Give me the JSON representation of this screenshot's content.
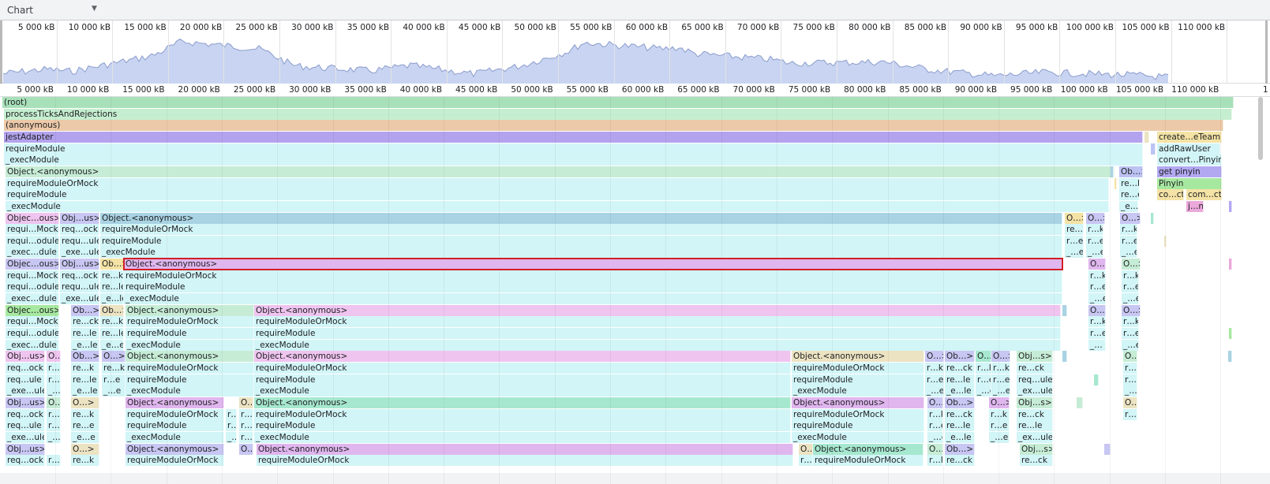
{
  "toolbar": {
    "view_select": {
      "value": "Chart",
      "arrow": "▼"
    }
  },
  "overview": {
    "ticks": [
      "5 000 kB",
      "10 000 kB",
      "15 000 kB",
      "20 000 kB",
      "25 000 kB",
      "30 000 kB",
      "35 000 kB",
      "40 000 kB",
      "45 000 kB",
      "50 000 kB",
      "55 000 kB",
      "60 000 kB",
      "65 000 kB",
      "70 000 kB",
      "75 000 kB",
      "80 000 kB",
      "85 000 kB",
      "90 000 kB",
      "95 000 kB",
      "100 000 kB",
      "105 000 kB",
      "110 000 kB"
    ],
    "fill_color": "#c8d4f1",
    "stroke_color": "#8b9ccd"
  },
  "ruler": {
    "ticks": [
      "5 000 kB",
      "10 000 kB",
      "15 000 kB",
      "20 000 kB",
      "25 000 kB",
      "30 000 kB",
      "35 000 kB",
      "40 000 kB",
      "45 000 kB",
      "50 000 kB",
      "55 000 kB",
      "60 000 kB",
      "65 000 kB",
      "70 000 kB",
      "75 000 kB",
      "80 000 kB",
      "85 000 kB",
      "90 000 kB",
      "95 000 kB",
      "100 000 kB",
      "105 000 kB",
      "110 000 kB",
      "1"
    ]
  },
  "colors": {
    "root": "#a8e0b9",
    "process": "#c5eed0",
    "anon": "#ecc9a8",
    "jest": "#b3a3ee",
    "cyan": "#d2f5f7",
    "obj_green": "#c6ecd5",
    "obj_blue": "#a9d3e3",
    "obj_pink": "#efc4ef",
    "obj_violet": "#c8c6f2",
    "obj_lilac": "#e0b6ee",
    "obj_teal": "#a6e8cf",
    "obj_sand": "#ece3c2",
    "selected_outline": "#d21f26",
    "yellow": "#f4e3a5",
    "purple": "#b2a8f2",
    "green2": "#a7e8a0",
    "lav": "#bcc3f3",
    "pinkish": "#eba8da"
  },
  "flame": {
    "bars": [
      {
        "label": "(root)",
        "color": "root"
      },
      {
        "label": "processTicksAndRejections",
        "color": "process"
      },
      {
        "label": "(anonymous)",
        "color": "anon"
      },
      {
        "label": "jestAdapter",
        "color": "jest"
      },
      {
        "label": "requireModule",
        "color": "cyan"
      },
      {
        "label": "_execModule",
        "color": "cyan"
      },
      {
        "label": "Object.<anonymous>",
        "color": "obj_green"
      },
      {
        "label": "requireModuleOrMock",
        "color": "cyan"
      },
      {
        "label": "requireModule",
        "color": "cyan"
      },
      {
        "label": "_execModule",
        "color": "cyan"
      },
      {
        "label": "create…eTeam",
        "color": "yellow"
      },
      {
        "label": "addRawUser",
        "color": "cyan"
      },
      {
        "label": "convert…Pinyin",
        "color": "cyan"
      },
      {
        "label": "get pinyin",
        "color": "purple"
      },
      {
        "label": "Pinyin",
        "color": "green2"
      },
      {
        "label": "co…ct",
        "color": "yellow"
      },
      {
        "label": "com…ct",
        "color": "yellow"
      },
      {
        "label": "j…n",
        "color": "pinkish"
      },
      {
        "label": "Ob…>",
        "color": "lav"
      },
      {
        "label": "re…k",
        "color": "cyan"
      },
      {
        "label": "re…e",
        "color": "cyan"
      },
      {
        "label": "_e…e",
        "color": "cyan"
      },
      {
        "label": "Objec…ous>",
        "color": "obj_pink"
      },
      {
        "label": "Obj…us>",
        "color": "obj_violet"
      },
      {
        "label": "Object.<anonymous>",
        "color": "obj_blue"
      },
      {
        "label": "requi…Mock",
        "color": "cyan"
      },
      {
        "label": "req…ock",
        "color": "cyan"
      },
      {
        "label": "requireModuleOrMock",
        "color": "cyan"
      },
      {
        "label": "requi…odule",
        "color": "cyan"
      },
      {
        "label": "requ…ule",
        "color": "cyan"
      },
      {
        "label": "requireModule",
        "color": "cyan"
      },
      {
        "label": "_exec…dule",
        "color": "cyan"
      },
      {
        "label": "_exe…ule",
        "color": "cyan"
      },
      {
        "label": "_execModule",
        "color": "cyan"
      },
      {
        "label": "O…>",
        "color": "yellow"
      },
      {
        "label": "O…>",
        "color": "obj_violet"
      },
      {
        "label": "O…>",
        "color": "obj_violet"
      },
      {
        "label": "re…k",
        "color": "cyan"
      },
      {
        "label": "r…k",
        "color": "cyan"
      },
      {
        "label": "r…e",
        "color": "cyan"
      },
      {
        "label": "r…e",
        "color": "cyan"
      },
      {
        "label": "_…e",
        "color": "cyan"
      },
      {
        "label": "_…e",
        "color": "cyan"
      },
      {
        "label": "r…k",
        "color": "cyan"
      },
      {
        "label": "r…e",
        "color": "cyan"
      },
      {
        "label": "_…e",
        "color": "cyan"
      },
      {
        "label": "Objec…ous>",
        "color": "obj_violet"
      },
      {
        "label": "Obj…us>",
        "color": "obj_violet"
      },
      {
        "label": "Ob…>",
        "color": "yellow"
      },
      {
        "label": "Object.<anonymous>",
        "color": "obj_lilac"
      },
      {
        "label": "requi…Mock",
        "color": "cyan"
      },
      {
        "label": "req…ock",
        "color": "cyan"
      },
      {
        "label": "re…k",
        "color": "cyan"
      },
      {
        "label": "requireModuleOrMock",
        "color": "cyan"
      },
      {
        "label": "requi…odule",
        "color": "cyan"
      },
      {
        "label": "requ…ule",
        "color": "cyan"
      },
      {
        "label": "re…le",
        "color": "cyan"
      },
      {
        "label": "requireModule",
        "color": "cyan"
      },
      {
        "label": "_exec…dule",
        "color": "cyan"
      },
      {
        "label": "_exe…ule",
        "color": "cyan"
      },
      {
        "label": "_e…le",
        "color": "cyan"
      },
      {
        "label": "_execModule",
        "color": "cyan"
      },
      {
        "label": "O…",
        "color": "obj_lilac"
      },
      {
        "label": "O…>",
        "color": "obj_green"
      },
      {
        "label": "r…k",
        "color": "cyan"
      },
      {
        "label": "r…e",
        "color": "cyan"
      },
      {
        "label": "_…e",
        "color": "cyan"
      },
      {
        "label": "r…k",
        "color": "cyan"
      },
      {
        "label": "r…e",
        "color": "cyan"
      },
      {
        "label": "_…e",
        "color": "cyan"
      },
      {
        "label": "Objec…ous>",
        "color": "green2"
      },
      {
        "label": "Ob…>",
        "color": "obj_violet"
      },
      {
        "label": "Ob…>",
        "color": "obj_sand"
      },
      {
        "label": "Object.<anonymous>",
        "color": "obj_green"
      },
      {
        "label": "Object.<anonymous>",
        "color": "obj_pink"
      },
      {
        "label": "requi…Mock",
        "color": "cyan"
      },
      {
        "label": "re…ck",
        "color": "cyan"
      },
      {
        "label": "re…k",
        "color": "cyan"
      },
      {
        "label": "requireModuleOrMock",
        "color": "cyan"
      },
      {
        "label": "requireModuleOrMock",
        "color": "cyan"
      },
      {
        "label": "requi…odule",
        "color": "cyan"
      },
      {
        "label": "re…le",
        "color": "cyan"
      },
      {
        "label": "re…le",
        "color": "cyan"
      },
      {
        "label": "requireModule",
        "color": "cyan"
      },
      {
        "label": "requireModule",
        "color": "cyan"
      },
      {
        "label": "_exec…dule",
        "color": "cyan"
      },
      {
        "label": "_e…le",
        "color": "cyan"
      },
      {
        "label": "_e…e",
        "color": "cyan"
      },
      {
        "label": "_execModule",
        "color": "cyan"
      },
      {
        "label": "_execModule",
        "color": "cyan"
      },
      {
        "label": "O…",
        "color": "obj_violet"
      },
      {
        "label": "r…k",
        "color": "cyan"
      },
      {
        "label": "r…e",
        "color": "cyan"
      },
      {
        "label": "_…",
        "color": "cyan"
      },
      {
        "label": "O…>",
        "color": "obj_violet"
      },
      {
        "label": "r…k",
        "color": "cyan"
      },
      {
        "label": "r…e",
        "color": "cyan"
      },
      {
        "label": "_…e",
        "color": "cyan"
      },
      {
        "label": "Obj…us>",
        "color": "obj_pink"
      },
      {
        "label": "O…",
        "color": "obj_pink"
      },
      {
        "label": "Ob…>",
        "color": "obj_violet"
      },
      {
        "label": "O…>",
        "color": "obj_violet"
      },
      {
        "label": "Object.<anonymous>",
        "color": "obj_green"
      },
      {
        "label": "Object.<anonymous>",
        "color": "obj_pink"
      },
      {
        "label": "Object.<anonymous>",
        "color": "obj_sand"
      },
      {
        "label": "O…>",
        "color": "obj_violet"
      },
      {
        "label": "Ob…>",
        "color": "obj_violet"
      },
      {
        "label": "O…",
        "color": "obj_teal"
      },
      {
        "label": "O…>",
        "color": "obj_violet"
      },
      {
        "label": "Obj…s>",
        "color": "obj_green"
      },
      {
        "label": "O…",
        "color": "obj_green"
      },
      {
        "label": "req…ock",
        "color": "cyan"
      },
      {
        "label": "r…",
        "color": "cyan"
      },
      {
        "label": "re…k",
        "color": "cyan"
      },
      {
        "label": "re…k",
        "color": "cyan"
      },
      {
        "label": "requireModuleOrMock",
        "color": "cyan"
      },
      {
        "label": "requireModuleOrMock",
        "color": "cyan"
      },
      {
        "label": "requireModuleOrMock",
        "color": "cyan"
      },
      {
        "label": "r…k",
        "color": "cyan"
      },
      {
        "label": "re…ck",
        "color": "cyan"
      },
      {
        "label": "r…k",
        "color": "cyan"
      },
      {
        "label": "r…k",
        "color": "cyan"
      },
      {
        "label": "re…ck",
        "color": "cyan"
      },
      {
        "label": "r…k",
        "color": "cyan"
      },
      {
        "label": "req…ule",
        "color": "cyan"
      },
      {
        "label": "r…",
        "color": "cyan"
      },
      {
        "label": "re…le",
        "color": "cyan"
      },
      {
        "label": "r…e",
        "color": "cyan"
      },
      {
        "label": "requireModule",
        "color": "cyan"
      },
      {
        "label": "requireModule",
        "color": "cyan"
      },
      {
        "label": "requireModule",
        "color": "cyan"
      },
      {
        "label": "r…e",
        "color": "cyan"
      },
      {
        "label": "re…le",
        "color": "cyan"
      },
      {
        "label": "r…e",
        "color": "cyan"
      },
      {
        "label": "r…e",
        "color": "cyan"
      },
      {
        "label": "req…ule",
        "color": "cyan"
      },
      {
        "label": "r…e",
        "color": "cyan"
      },
      {
        "label": "_exe…ule",
        "color": "cyan"
      },
      {
        "label": "_…",
        "color": "cyan"
      },
      {
        "label": "_e…le",
        "color": "cyan"
      },
      {
        "label": "_…e",
        "color": "cyan"
      },
      {
        "label": "_execModule",
        "color": "cyan"
      },
      {
        "label": "_execModule",
        "color": "cyan"
      },
      {
        "label": "_execModule",
        "color": "cyan"
      },
      {
        "label": "_…e",
        "color": "cyan"
      },
      {
        "label": "_e…le",
        "color": "cyan"
      },
      {
        "label": "_…e",
        "color": "cyan"
      },
      {
        "label": "_…e",
        "color": "cyan"
      },
      {
        "label": "_ex…ule",
        "color": "cyan"
      },
      {
        "label": "_…",
        "color": "cyan"
      },
      {
        "label": "Obj…us>",
        "color": "obj_violet"
      },
      {
        "label": "O…",
        "color": "obj_green"
      },
      {
        "label": "O…>",
        "color": "obj_sand"
      },
      {
        "label": "Object.<anonymous>",
        "color": "obj_lilac"
      },
      {
        "label": "O…",
        "color": "obj_sand"
      },
      {
        "label": "Object.<anonymous>",
        "color": "obj_teal"
      },
      {
        "label": "Object.<anonymous>",
        "color": "obj_lilac"
      },
      {
        "label": "O…",
        "color": "obj_violet"
      },
      {
        "label": "Ob…>",
        "color": "obj_violet"
      },
      {
        "label": "O…>",
        "color": "obj_lilac"
      },
      {
        "label": "Obj…s>",
        "color": "obj_green"
      },
      {
        "label": "O…",
        "color": "obj_sand"
      },
      {
        "label": "req…ock",
        "color": "cyan"
      },
      {
        "label": "r…",
        "color": "cyan"
      },
      {
        "label": "re…k",
        "color": "cyan"
      },
      {
        "label": "requireModuleOrMock",
        "color": "cyan"
      },
      {
        "label": "r…",
        "color": "cyan"
      },
      {
        "label": "r…",
        "color": "cyan"
      },
      {
        "label": "requireModuleOrMock",
        "color": "cyan"
      },
      {
        "label": "requireModuleOrMock",
        "color": "cyan"
      },
      {
        "label": "r…k",
        "color": "cyan"
      },
      {
        "label": "re…ck",
        "color": "cyan"
      },
      {
        "label": "r…k",
        "color": "cyan"
      },
      {
        "label": "re…ck",
        "color": "cyan"
      },
      {
        "label": "r…",
        "color": "cyan"
      },
      {
        "label": "req…ule",
        "color": "cyan"
      },
      {
        "label": "r…",
        "color": "cyan"
      },
      {
        "label": "re…e",
        "color": "cyan"
      },
      {
        "label": "requireModule",
        "color": "cyan"
      },
      {
        "label": "r…",
        "color": "cyan"
      },
      {
        "label": "r…",
        "color": "cyan"
      },
      {
        "label": "requireModule",
        "color": "cyan"
      },
      {
        "label": "requireModule",
        "color": "cyan"
      },
      {
        "label": "r…e",
        "color": "cyan"
      },
      {
        "label": "re…le",
        "color": "cyan"
      },
      {
        "label": "r…e",
        "color": "cyan"
      },
      {
        "label": "re…le",
        "color": "cyan"
      },
      {
        "label": "_exe…ule",
        "color": "cyan"
      },
      {
        "label": "_…",
        "color": "cyan"
      },
      {
        "label": "_e…e",
        "color": "cyan"
      },
      {
        "label": "_execModule",
        "color": "cyan"
      },
      {
        "label": "_…",
        "color": "cyan"
      },
      {
        "label": "r…",
        "color": "cyan"
      },
      {
        "label": "_execModule",
        "color": "cyan"
      },
      {
        "label": "_execModule",
        "color": "cyan"
      },
      {
        "label": "_…e",
        "color": "cyan"
      },
      {
        "label": "_e…le",
        "color": "cyan"
      },
      {
        "label": "_…e",
        "color": "cyan"
      },
      {
        "label": "_ex…ule",
        "color": "cyan"
      },
      {
        "label": "Obj…us>",
        "color": "obj_violet"
      },
      {
        "label": "O…>",
        "color": "obj_sand"
      },
      {
        "label": "Object.<anonymous>",
        "color": "obj_violet"
      },
      {
        "label": "O…",
        "color": "obj_violet"
      },
      {
        "label": "Object.<anonymous>",
        "color": "obj_lilac"
      },
      {
        "label": "O…",
        "color": "obj_sand"
      },
      {
        "label": "Object.<anonymous>",
        "color": "obj_teal"
      },
      {
        "label": "O…",
        "color": "obj_green"
      },
      {
        "label": "Ob…>",
        "color": "obj_violet"
      },
      {
        "label": "Obj…s>",
        "color": "obj_green"
      },
      {
        "label": "req…ock",
        "color": "cyan"
      },
      {
        "label": "r…",
        "color": "cyan"
      },
      {
        "label": "re…k",
        "color": "cyan"
      },
      {
        "label": "requireModuleOrMock",
        "color": "cyan"
      },
      {
        "label": "requireModuleOrMock",
        "color": "cyan"
      },
      {
        "label": "r…",
        "color": "cyan"
      },
      {
        "label": "requireModuleOrMock",
        "color": "cyan"
      },
      {
        "label": "r…k",
        "color": "cyan"
      },
      {
        "label": "re…ck",
        "color": "cyan"
      },
      {
        "label": "re…ck",
        "color": "cyan"
      }
    ]
  }
}
